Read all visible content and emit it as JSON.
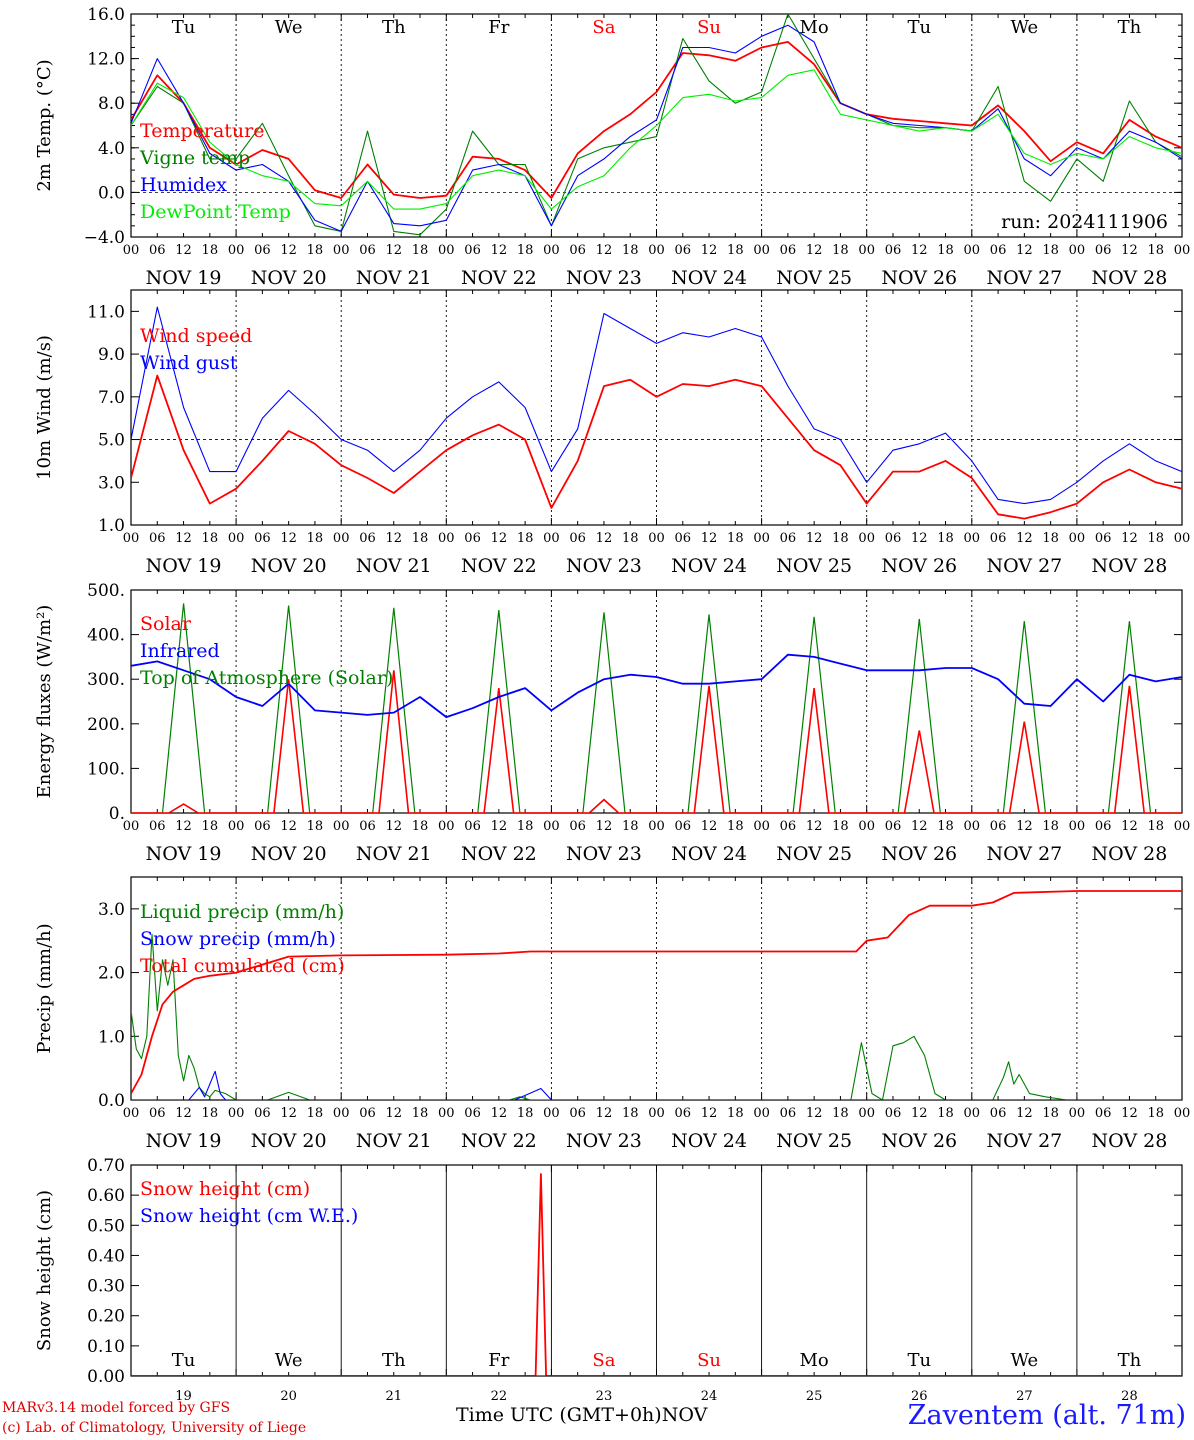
{
  "footer": {
    "model_line": "MARv3.14 model forced by GFS",
    "lab_line": "(c) Lab. of Climatology, University of Liege",
    "time_label": "Time UTC (GMT+0h)",
    "month": "NOV",
    "station": "Zaventem (alt. 71m)"
  },
  "run_label": "run: 2024111906",
  "colors": {
    "red": "#ff0000",
    "green": "#008000",
    "blue": "#0000ff",
    "lightgreen": "#00ee00",
    "weekend": "#ff0000",
    "weekday": "#000000"
  },
  "days": [
    {
      "dow": "Tu",
      "date": "NOV 19",
      "num": "19",
      "weekend": false
    },
    {
      "dow": "We",
      "date": "NOV 20",
      "num": "20",
      "weekend": false
    },
    {
      "dow": "Th",
      "date": "NOV 21",
      "num": "21",
      "weekend": false
    },
    {
      "dow": "Fr",
      "date": "NOV 22",
      "num": "22",
      "weekend": false
    },
    {
      "dow": "Sa",
      "date": "NOV 23",
      "num": "23",
      "weekend": true
    },
    {
      "dow": "Su",
      "date": "NOV 24",
      "num": "24",
      "weekend": true
    },
    {
      "dow": "Mo",
      "date": "NOV 25",
      "num": "25",
      "weekend": false
    },
    {
      "dow": "Tu",
      "date": "NOV 26",
      "num": "26",
      "weekend": false
    },
    {
      "dow": "We",
      "date": "NOV 27",
      "num": "27",
      "weekend": false
    },
    {
      "dow": "Th",
      "date": "NOV 28",
      "num": "28",
      "weekend": false
    }
  ],
  "hour_ticks": [
    "00",
    "06",
    "12",
    "18"
  ],
  "chart_data": [
    {
      "type": "line",
      "ylabel": "2m Temp. (°C)",
      "ylim": [
        -4,
        16
      ],
      "yticks": [
        -4,
        0,
        4,
        8,
        12,
        16
      ],
      "ytick_labels": [
        "−4.0",
        "0.0",
        "4.0",
        "8.0",
        "12.0",
        "16.0"
      ],
      "x": [
        0,
        0.25,
        0.5,
        0.75,
        1,
        1.25,
        1.5,
        1.75,
        2,
        2.25,
        2.5,
        2.75,
        3,
        3.25,
        3.5,
        3.75,
        4,
        4.25,
        4.5,
        4.75,
        5,
        5.25,
        5.5,
        5.75,
        6,
        6.25,
        6.5,
        6.75,
        7,
        7.25,
        7.5,
        7.75,
        8,
        8.25,
        8.5,
        8.75,
        9,
        9.25,
        9.5,
        9.75,
        10
      ],
      "series": [
        {
          "name": "Temperature",
          "color": "red",
          "values": [
            6.5,
            10.5,
            8.0,
            4.0,
            2.5,
            3.8,
            3.0,
            0.2,
            -0.5,
            2.5,
            -0.2,
            -0.5,
            -0.3,
            3.2,
            3.0,
            2.0,
            -0.5,
            3.5,
            5.5,
            7.0,
            9.0,
            12.5,
            12.3,
            11.8,
            13.0,
            13.5,
            11.5,
            8.0,
            7.0,
            6.6,
            6.4,
            6.2,
            6.0,
            7.8,
            5.5,
            2.8,
            4.5,
            3.5,
            6.5,
            5.0,
            4.0
          ]
        },
        {
          "name": "Vigne temp",
          "color": "green",
          "values": [
            6.0,
            9.5,
            8.0,
            3.0,
            3.0,
            6.2,
            1.5,
            -3.0,
            -3.5,
            5.5,
            -3.5,
            -3.8,
            -1.5,
            5.5,
            2.5,
            2.5,
            -3.0,
            3.0,
            4.0,
            4.5,
            5.0,
            13.8,
            10.0,
            8.0,
            9.0,
            16.0,
            12.0,
            8.0,
            7.0,
            6.0,
            5.8,
            5.8,
            5.5,
            9.5,
            1.0,
            -0.8,
            3.0,
            1.0,
            8.2,
            4.5,
            3.2
          ]
        },
        {
          "name": "Humidex",
          "color": "blue",
          "values": [
            6.2,
            12.0,
            8.0,
            3.5,
            2.0,
            2.5,
            1.0,
            -2.5,
            -3.5,
            1.0,
            -2.8,
            -3.0,
            -2.5,
            2.0,
            2.5,
            1.5,
            -3.0,
            1.5,
            3.0,
            5.0,
            6.5,
            13.0,
            13.0,
            12.5,
            14.0,
            15.0,
            13.5,
            8.0,
            7.0,
            6.2,
            6.0,
            5.8,
            5.5,
            7.5,
            3.0,
            1.5,
            4.0,
            3.0,
            5.5,
            4.5,
            3.0
          ]
        },
        {
          "name": "DewPoint Temp",
          "color": "lightgreen",
          "values": [
            6.0,
            9.8,
            8.5,
            4.5,
            2.5,
            1.5,
            1.0,
            -1.0,
            -1.2,
            1.0,
            -1.5,
            -1.5,
            -1.0,
            1.5,
            2.0,
            1.5,
            -1.5,
            0.5,
            1.5,
            4.0,
            6.0,
            8.5,
            8.8,
            8.2,
            8.5,
            10.5,
            11.0,
            7.0,
            6.5,
            6.0,
            5.5,
            5.8,
            5.5,
            7.0,
            3.5,
            2.5,
            3.5,
            3.0,
            5.0,
            4.0,
            3.5
          ]
        }
      ],
      "legend_placement": "top-left",
      "reference_line": 0
    },
    {
      "type": "line",
      "ylabel": "10m Wind (m/s)",
      "ylim": [
        1,
        12
      ],
      "yticks": [
        1,
        3,
        5,
        7,
        9,
        11
      ],
      "ytick_labels": [
        "1.0",
        "3.0",
        "5.0",
        "7.0",
        "9.0",
        "11.0"
      ],
      "x": [
        0,
        0.25,
        0.5,
        0.75,
        1,
        1.25,
        1.5,
        1.75,
        2,
        2.25,
        2.5,
        2.75,
        3,
        3.25,
        3.5,
        3.75,
        4,
        4.25,
        4.5,
        4.75,
        5,
        5.25,
        5.5,
        5.75,
        6,
        6.25,
        6.5,
        6.75,
        7,
        7.25,
        7.5,
        7.75,
        8,
        8.25,
        8.5,
        8.75,
        9,
        9.25,
        9.5,
        9.75,
        10
      ],
      "series": [
        {
          "name": "Wind speed",
          "color": "red",
          "values": [
            3.2,
            8.0,
            4.5,
            2.0,
            2.7,
            4.0,
            5.4,
            4.8,
            3.8,
            3.2,
            2.5,
            3.5,
            4.5,
            5.2,
            5.7,
            5.0,
            1.8,
            4.0,
            7.5,
            7.8,
            7.0,
            7.6,
            7.5,
            7.8,
            7.5,
            6.0,
            4.5,
            3.8,
            2.0,
            3.5,
            3.5,
            4.0,
            3.2,
            1.5,
            1.3,
            1.6,
            2.0,
            3.0,
            3.6,
            3.0,
            2.7
          ]
        },
        {
          "name": "Wind gust",
          "color": "blue",
          "values": [
            5.0,
            11.2,
            6.5,
            3.5,
            3.5,
            6.0,
            7.3,
            6.2,
            5.0,
            4.5,
            3.5,
            4.5,
            6.0,
            7.0,
            7.7,
            6.5,
            3.5,
            5.5,
            10.9,
            10.2,
            9.5,
            10.0,
            9.8,
            10.2,
            9.8,
            7.5,
            5.5,
            5.0,
            3.0,
            4.5,
            4.8,
            5.3,
            4.0,
            2.2,
            2.0,
            2.2,
            3.0,
            4.0,
            4.8,
            4.0,
            3.5
          ]
        }
      ],
      "legend_placement": "top-left",
      "reference_line": 5
    },
    {
      "type": "line",
      "ylabel": "Energy fluxes (W/m²)",
      "ylim": [
        0,
        500
      ],
      "yticks": [
        0,
        100,
        200,
        300,
        400,
        500
      ],
      "ytick_labels": [
        "0.",
        "100.",
        "200.",
        "300.",
        "400.",
        "500."
      ],
      "x": [
        0,
        0.25,
        0.5,
        0.75,
        1,
        1.25,
        1.5,
        1.75,
        2,
        2.25,
        2.5,
        2.75,
        3,
        3.25,
        3.5,
        3.75,
        4,
        4.25,
        4.5,
        4.75,
        5,
        5.25,
        5.5,
        5.75,
        6,
        6.25,
        6.5,
        6.75,
        7,
        7.25,
        7.5,
        7.75,
        8,
        8.25,
        8.5,
        8.75,
        9,
        9.25,
        9.5,
        9.75,
        10
      ],
      "series": [
        {
          "name": "Infrared",
          "color": "blue",
          "values": [
            330,
            340,
            320,
            300,
            260,
            240,
            290,
            230,
            225,
            220,
            225,
            260,
            215,
            235,
            260,
            280,
            230,
            270,
            300,
            310,
            305,
            290,
            290,
            295,
            300,
            355,
            350,
            335,
            320,
            320,
            320,
            325,
            325,
            300,
            245,
            240,
            300,
            250,
            310,
            295,
            305
          ]
        }
      ],
      "diurnal_peaks": {
        "top_of_atmosphere": [
          470,
          465,
          460,
          455,
          450,
          445,
          440,
          435,
          430,
          430
        ],
        "solar": [
          20,
          300,
          320,
          280,
          30,
          285,
          280,
          185,
          205,
          285
        ]
      },
      "legend": [
        "Solar",
        "Infrared",
        "Top of Atmosphere (Solar)"
      ],
      "legend_placement": "top-left"
    },
    {
      "type": "line",
      "ylabel": "Precip (mm/h)",
      "ylim": [
        0,
        3.5
      ],
      "yticks": [
        0,
        1,
        2,
        3
      ],
      "ytick_labels": [
        "0.0",
        "1.0",
        "2.0",
        "3.0"
      ],
      "series": [
        {
          "name": "Liquid precip (mm/h)",
          "color": "green",
          "x": [
            0,
            0.05,
            0.1,
            0.15,
            0.2,
            0.25,
            0.3,
            0.35,
            0.4,
            0.45,
            0.5,
            0.55,
            0.6,
            0.65,
            0.7,
            0.75,
            0.8,
            0.9,
            1.0,
            1.3,
            1.5,
            1.7,
            2.0,
            3.6,
            3.7,
            3.8,
            4.0,
            6.85,
            6.95,
            7.05,
            7.15,
            7.25,
            7.35,
            7.45,
            7.55,
            7.65,
            7.75,
            8.2,
            8.3,
            8.35,
            8.4,
            8.45,
            8.55,
            8.7,
            8.9,
            10.0
          ],
          "values": [
            1.4,
            0.8,
            0.65,
            1.0,
            2.6,
            1.4,
            2.2,
            1.8,
            2.2,
            0.7,
            0.3,
            0.7,
            0.5,
            0.2,
            0.1,
            0.05,
            0.15,
            0.1,
            0.0,
            0.0,
            0.12,
            0.0,
            0.0,
            0.0,
            0.05,
            0.0,
            0.0,
            0.0,
            0.9,
            0.1,
            0.0,
            0.85,
            0.9,
            1.0,
            0.7,
            0.1,
            0.0,
            0.0,
            0.35,
            0.6,
            0.25,
            0.4,
            0.1,
            0.05,
            0.0,
            0.0
          ]
        },
        {
          "name": "Snow precip (mm/h)",
          "color": "blue",
          "x": [
            0,
            0.55,
            0.65,
            0.7,
            0.8,
            0.85,
            0.9,
            1.0,
            3.65,
            3.9,
            4.0,
            10.0
          ],
          "values": [
            0,
            0,
            0.2,
            0.05,
            0.45,
            0.1,
            0.0,
            0.0,
            0.0,
            0.18,
            0.0,
            0.0
          ]
        },
        {
          "name": "Total cumulated (cm)",
          "color": "red",
          "x": [
            0,
            0.1,
            0.2,
            0.3,
            0.4,
            0.5,
            0.6,
            0.75,
            1.0,
            1.5,
            2.0,
            3.0,
            3.5,
            3.8,
            4.0,
            6.9,
            7.0,
            7.2,
            7.4,
            7.6,
            8.0,
            8.2,
            8.4,
            9.0,
            10.0
          ],
          "values": [
            0.1,
            0.4,
            1.0,
            1.5,
            1.7,
            1.8,
            1.9,
            1.95,
            2.0,
            2.25,
            2.27,
            2.28,
            2.3,
            2.33,
            2.33,
            2.33,
            2.5,
            2.55,
            2.9,
            3.05,
            3.05,
            3.1,
            3.25,
            3.28,
            3.28
          ]
        }
      ],
      "legend_placement": "top-left"
    },
    {
      "type": "line",
      "ylabel": "Snow height (cm)",
      "ylim": [
        0,
        0.7
      ],
      "yticks": [
        0,
        0.1,
        0.2,
        0.3,
        0.4,
        0.5,
        0.6,
        0.7
      ],
      "ytick_labels": [
        "0.00",
        "0.10",
        "0.20",
        "0.30",
        "0.40",
        "0.50",
        "0.60",
        "0.70"
      ],
      "series": [
        {
          "name": "Snow height (cm)",
          "color": "red",
          "x": [
            0,
            3.85,
            3.9,
            3.95,
            10.0
          ],
          "values": [
            0,
            0,
            0.67,
            0,
            0
          ]
        },
        {
          "name": "Snow height (cm W.E.)",
          "color": "blue",
          "x": [
            0,
            10.0
          ],
          "values": [
            0,
            0
          ]
        }
      ],
      "legend_placement": "top-left"
    }
  ]
}
